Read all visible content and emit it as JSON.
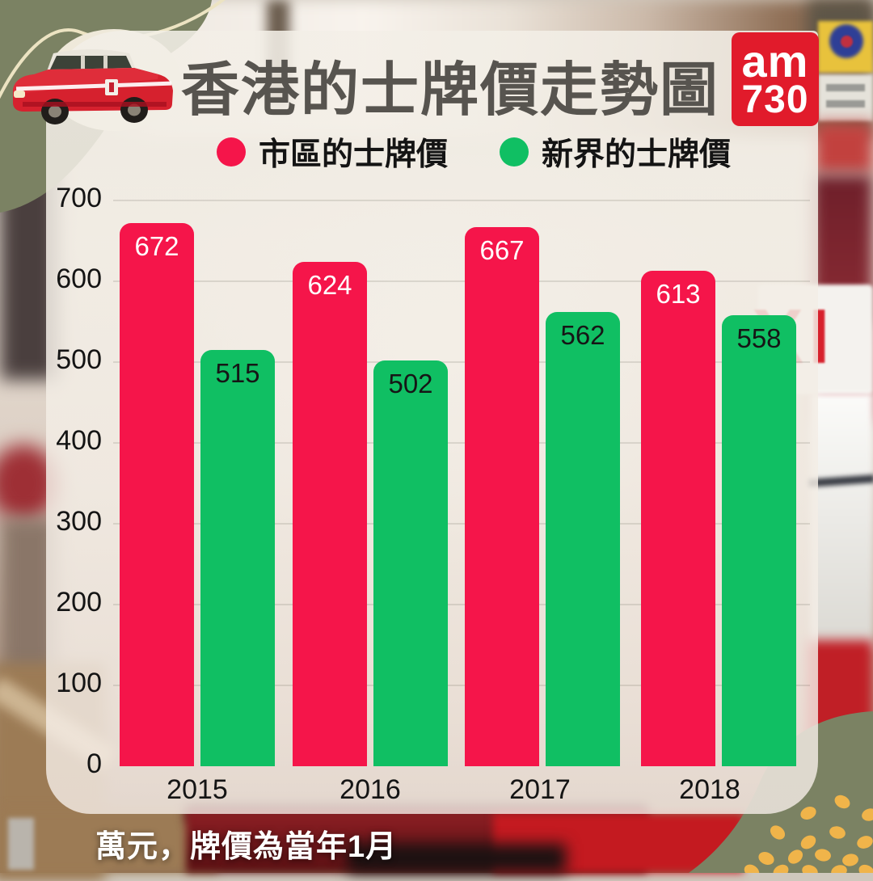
{
  "title": "香港的士牌價走勢圖",
  "logo": {
    "line1": "am",
    "line2": "730",
    "bg_color": "#e11b2b",
    "text_color": "#ffffff"
  },
  "legend": [
    {
      "label": "市區的士牌價",
      "color": "#f5154a"
    },
    {
      "label": "新界的士牌價",
      "color": "#10bf63"
    }
  ],
  "footer_note": "萬元，牌價為當年1月",
  "chart_data": {
    "type": "bar",
    "title": "香港的士牌價走勢圖",
    "categories": [
      "2015",
      "2016",
      "2017",
      "2018"
    ],
    "series": [
      {
        "name": "市區的士牌價",
        "color": "#f5154a",
        "label_color": "#ffffff",
        "values": [
          672,
          624,
          667,
          613
        ]
      },
      {
        "name": "新界的士牌價",
        "color": "#10bf63",
        "label_color": "#161616",
        "values": [
          515,
          502,
          562,
          558
        ]
      }
    ],
    "xlabel": "",
    "ylabel": "",
    "unit_note": "萬元，牌價為當年1月",
    "yticks": [
      0,
      100,
      200,
      300,
      400,
      500,
      600,
      700
    ],
    "ylim": [
      0,
      700
    ],
    "grid": true,
    "legend_position": "top"
  },
  "background_photo_text": {
    "taxi_roof_sign": "XI"
  },
  "accent_colors": {
    "olive_blob": "#7b8263",
    "dots": "#f0b44a",
    "card_cream": "#f3efe7",
    "title_gray": "#57544f"
  }
}
